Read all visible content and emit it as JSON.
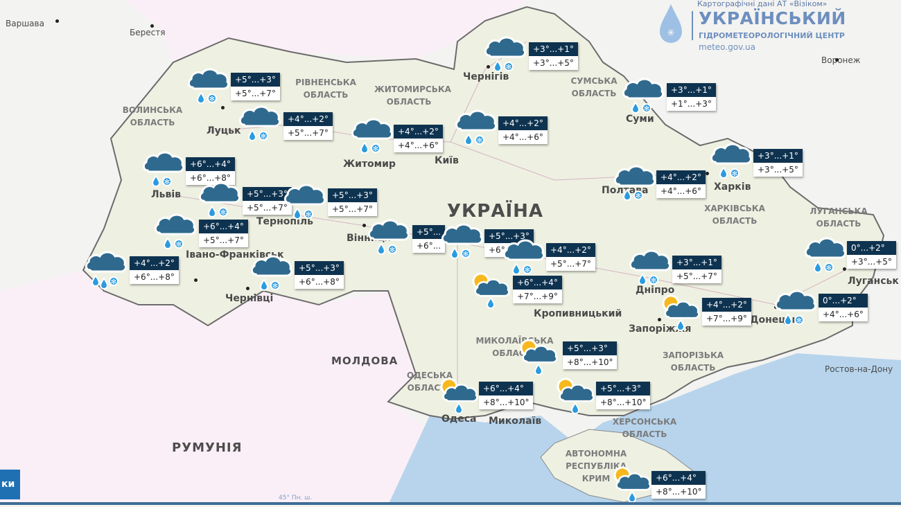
{
  "header": {
    "credit": "Картографічні дані АТ «Візіком»",
    "org_title": "УКРАЇНСЬКИЙ",
    "org_subtitle": "ГІДРОМЕТЕОРОЛОГІЧНИЙ ЦЕНТР",
    "org_url": "meteo.gov.ua"
  },
  "colors": {
    "label_day_bg": "#0e3350",
    "label_night_bg": "#ffffff",
    "cloud": "#2f6a8e",
    "drop": "#2a9be0",
    "sun": "#f6b81c",
    "sea": "#b7d4ec",
    "land": "#eef0e2",
    "foreign": "#fbeff7"
  },
  "countries": {
    "ukraine": "УКРАЇНА",
    "moldova": "МОЛДОВА",
    "romania": "РУМУНІЯ"
  },
  "cities": [
    "Варшава",
    "Берестя",
    "Луцьк",
    "Львів",
    "Житомир",
    "Київ",
    "Чернігів",
    "Суми",
    "Полтава",
    "Харків",
    "Вінниця",
    "Тернопіль",
    "Івано-Франківськ",
    "Чернівці",
    "Одеса",
    "Миколаїв",
    "Дніпро",
    "Запоріжжя",
    "Донецьк",
    "Луганськ",
    "Воронеж",
    "Ростов-на-Дону",
    "Кропивницький"
  ],
  "regions": [
    "ВОЛИНСЬКА ОБЛАСТЬ",
    "РІВНЕНСЬКА ОБЛАСТЬ",
    "ЖИТОМИРСЬКА ОБЛАСТЬ",
    "СУМСЬКА ОБЛАСТЬ",
    "ХАРКІВСЬКА ОБЛАСТЬ",
    "ЛУГАНСЬКА ОБЛАСТЬ",
    "МИКОЛАЇВСЬКА ОБЛАСТЬ",
    "ОДЕСЬКА ОБЛАСТЬ",
    "ЗАПОРІЗЬКА ОБЛАСТЬ",
    "ХЕРСОНСЬКА ОБЛАСТЬ",
    "АВТОНОМНА РЕСПУБЛІКА КРИМ"
  ],
  "markers": [
    {
      "region": "volyn",
      "icon": "rain-snow-icon",
      "day": "+5°...+3°",
      "night": "+5°...+7°"
    },
    {
      "region": "rivne",
      "icon": "rain-snow-icon",
      "day": "+4°...+2°",
      "night": "+5°...+7°"
    },
    {
      "region": "zhytomyr",
      "icon": "rain-snow-icon",
      "day": "+4°...+2°",
      "night": "+4°...+6°"
    },
    {
      "region": "kyiv",
      "icon": "rain-snow-icon",
      "day": "+4°...+2°",
      "night": "+4°...+6°"
    },
    {
      "region": "chernihiv",
      "icon": "rain-snow-icon",
      "day": "+3°...+1°",
      "night": "+3°...+5°"
    },
    {
      "region": "sumy",
      "icon": "rain-snow-icon",
      "day": "+3°...+1°",
      "night": "+1°...+3°"
    },
    {
      "region": "kharkiv",
      "icon": "rain-snow-icon",
      "day": "+3°...+1°",
      "night": "+3°...+5°"
    },
    {
      "region": "poltava",
      "icon": "rain-snow-icon",
      "day": "+4°...+2°",
      "night": "+4°...+6°"
    },
    {
      "region": "lviv",
      "icon": "rain-snow-icon",
      "day": "+6°...+4°",
      "night": "+6°...+8°"
    },
    {
      "region": "ternopil",
      "icon": "rain-snow-icon",
      "day": "+5°...+3°",
      "night": "+5°...+7°"
    },
    {
      "region": "khmelnytskyi",
      "icon": "rain-snow-icon",
      "day": "+5°...+3°",
      "night": "+5°...+7°"
    },
    {
      "region": "ivano-frankivsk",
      "icon": "rain-snow-icon",
      "day": "+6°...+4°",
      "night": "+5°...+7°"
    },
    {
      "region": "zakarpattia",
      "icon": "heavy-rain-snow-icon",
      "day": "+4°...+2°",
      "night": "+6°...+8°"
    },
    {
      "region": "chernivtsi",
      "icon": "rain-snow-icon",
      "day": "+5°...+3°",
      "night": "+6°...+8°"
    },
    {
      "region": "vinnytsia",
      "icon": "rain-snow-icon",
      "day": "+5°...",
      "night": "+6°..."
    },
    {
      "region": "cherkasy",
      "icon": "rain-snow-icon",
      "day": "+5°...+3°",
      "night": "+6°..."
    },
    {
      "region": "kirovohrad",
      "icon": "rain-snow-icon",
      "day": "+4°...+2°",
      "night": "+5°...+7°"
    },
    {
      "region": "kropyvnytskyi",
      "icon": "sun-cloud-rain-icon",
      "day": "+6°...+4°",
      "night": "+7°...+9°"
    },
    {
      "region": "dnipro",
      "icon": "rain-snow-icon",
      "day": "+3°...+1°",
      "night": "+5°...+7°"
    },
    {
      "region": "luhansk",
      "icon": "rain-snow-icon",
      "day": "0°...+2°",
      "night": "+3°...+5°"
    },
    {
      "region": "zaporizhzhia",
      "icon": "sun-cloud-rain-icon",
      "day": "+4°...+2°",
      "night": "+7°...+9°"
    },
    {
      "region": "donetsk",
      "icon": "rain-snow-icon",
      "day": "0°...+2°",
      "night": "+4°...+6°"
    },
    {
      "region": "mykolaiv",
      "icon": "sun-cloud-rain-icon",
      "day": "+5°...+3°",
      "night": "+8°...+10°"
    },
    {
      "region": "odesa",
      "icon": "sun-cloud-rain-icon",
      "day": "+6°...+4°",
      "night": "+8°...+10°"
    },
    {
      "region": "kherson",
      "icon": "sun-cloud-rain-icon",
      "day": "+5°...+3°",
      "night": "+8°...+10°"
    },
    {
      "region": "crimea",
      "icon": "sun-cloud-rain-icon",
      "day": "+6°...+4°",
      "night": "+8°...+10°"
    }
  ],
  "button": {
    "label": "ки"
  },
  "latitude_label": "45° Пн. ш."
}
